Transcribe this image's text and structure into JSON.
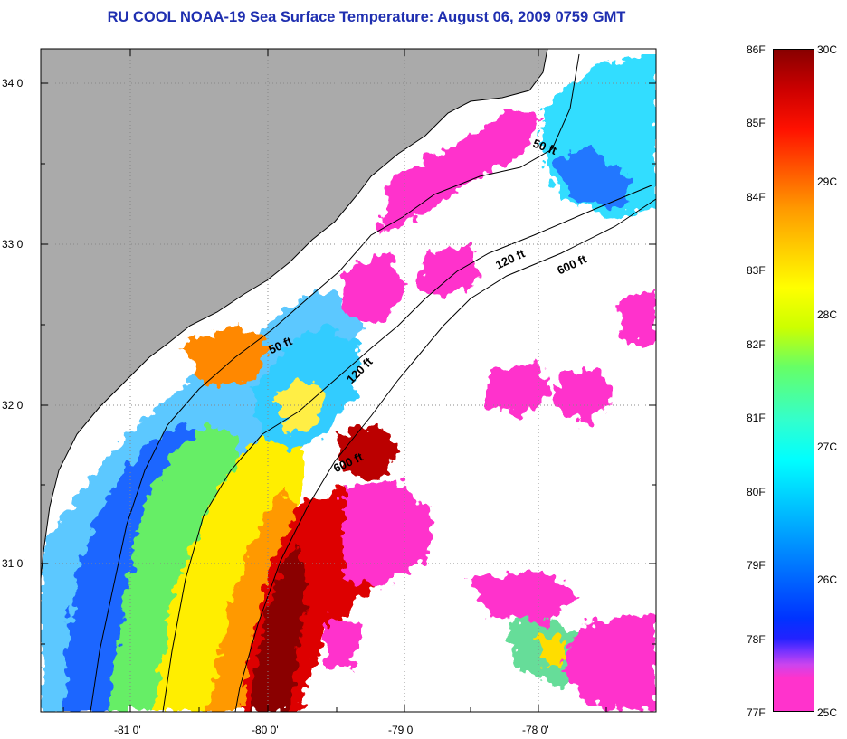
{
  "title": "RU COOL  NOAA-19  Sea Surface Temperature:  August 06, 2009 0759 GMT",
  "map": {
    "lat_labels": [
      "34 0'",
      "33 0'",
      "32 0'",
      "31 0'"
    ],
    "lon_labels": [
      "-81 0'",
      "-80 0'",
      "-79 0'",
      "-78 0'"
    ],
    "lat_range": [
      30.1,
      34.2
    ],
    "lon_range": [
      -81.7,
      -77.1
    ],
    "isobaths": [
      "50 ft",
      "50 ft",
      "120 ft",
      "120 ft",
      "600 ft",
      "600 ft"
    ],
    "colors": {
      "land": "#aaaaaa",
      "cloud": "#ffffff",
      "title": "#1f2fb0"
    }
  },
  "colorbar": {
    "left_labels": [
      "86F",
      "85F",
      "84F",
      "83F",
      "82F",
      "81F",
      "80F",
      "79F",
      "78F",
      "77F"
    ],
    "right_labels": [
      "30C",
      "29C",
      "28C",
      "27C",
      "26C",
      "25C"
    ],
    "range_F": [
      77,
      86
    ],
    "range_C": [
      25,
      30
    ]
  }
}
